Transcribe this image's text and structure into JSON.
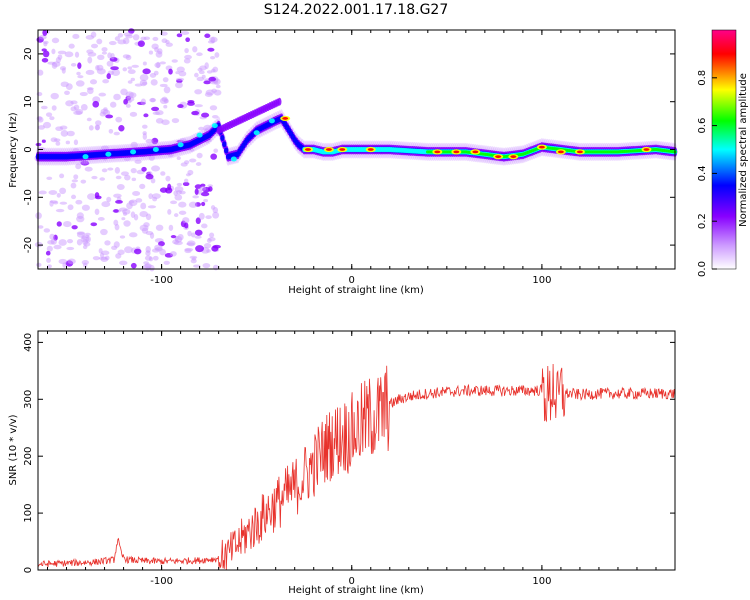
{
  "title": "S124.2022.001.17.18.G27",
  "colors": {
    "background": "#ffffff",
    "snr_line": "#e8322c",
    "colormap": [
      "#ffffff",
      "#cc99ff",
      "#8800ff",
      "#0000ff",
      "#00ffff",
      "#00ff00",
      "#ffff00",
      "#ff0000",
      "#ff0088"
    ]
  },
  "chart_data": [
    {
      "type": "heatmap",
      "xlabel": "Height of straight line (km)",
      "ylabel": "Frequency (Hz)",
      "xlim": [
        -165,
        170
      ],
      "ylim": [
        -25,
        25
      ],
      "xticks": [
        -100,
        0,
        100
      ],
      "yticks": [
        -20,
        -10,
        0,
        10,
        20
      ],
      "colorbar": {
        "label": "Normalized spectral amplitude",
        "range": [
          0,
          1
        ],
        "ticks": [
          "0.0",
          "0.2",
          "0.4",
          "0.6",
          "0.8"
        ]
      },
      "ridge": {
        "x": [
          -165,
          -150,
          -130,
          -110,
          -95,
          -85,
          -75,
          -70,
          -65,
          -60,
          -55,
          -50,
          -45,
          -40,
          -37,
          -33,
          -30,
          -28,
          -25,
          -20,
          -15,
          -10,
          -5,
          0,
          10,
          20,
          40,
          60,
          80,
          90,
          100,
          120,
          140,
          160,
          170
        ],
        "y": [
          -1.5,
          -1.5,
          -1,
          -0.5,
          0,
          1,
          3,
          5,
          -1.5,
          -1,
          2,
          4,
          5,
          6,
          6.5,
          4,
          2,
          1,
          0,
          0,
          -0.5,
          -0.5,
          0,
          0,
          0,
          0,
          -0.5,
          -0.5,
          -1.5,
          -1,
          0.5,
          -0.5,
          -0.5,
          0,
          -0.5
        ]
      }
    },
    {
      "type": "line",
      "xlabel": "Height of straight line (km)",
      "ylabel": "SNR (10 * v/v)",
      "xlim": [
        -165,
        170
      ],
      "ylim": [
        0,
        420
      ],
      "xticks": [
        -100,
        0,
        100
      ],
      "yticks": [
        0,
        100,
        200,
        300,
        400
      ],
      "series": [
        {
          "x": [
            -165,
            -150,
            -135,
            -125,
            -123,
            -121,
            -118,
            -110,
            -100,
            -90,
            -80,
            -70,
            -65,
            -60,
            -55,
            -50,
            -45,
            -40,
            -35,
            -30,
            -25,
            -20,
            -15,
            -10,
            -5,
            0,
            5,
            10,
            15,
            20,
            25,
            30,
            40,
            50,
            60,
            70,
            80,
            90,
            100,
            104,
            106,
            108,
            110,
            112,
            115,
            120,
            130,
            140,
            150,
            160,
            170
          ],
          "y": [
            10,
            12,
            14,
            18,
            55,
            25,
            18,
            16,
            15,
            16,
            17,
            20,
            28,
            45,
            65,
            80,
            100,
            115,
            130,
            145,
            165,
            185,
            210,
            225,
            235,
            240,
            255,
            268,
            272,
            290,
            300,
            305,
            310,
            313,
            315,
            315,
            315,
            315,
            316,
            300,
            330,
            290,
            315,
            310,
            310,
            308,
            310,
            310,
            310,
            310,
            310
          ]
        }
      ]
    }
  ]
}
